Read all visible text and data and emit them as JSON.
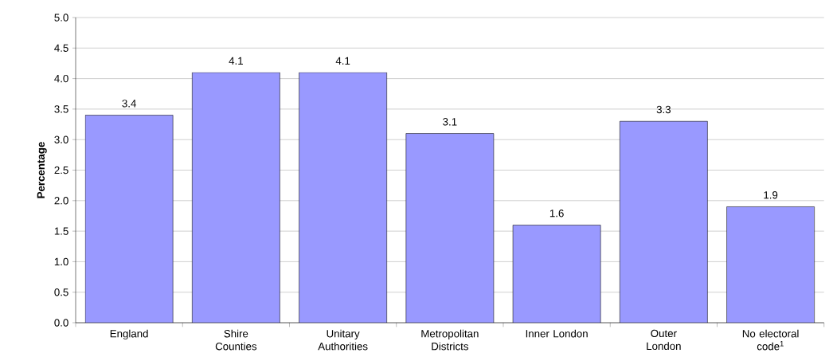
{
  "chart_data": {
    "type": "bar",
    "ylabel": "**Percentage**",
    "categories": [
      "England",
      "Shire Counties",
      "Unitary Authorities",
      "Metropolitan Districts",
      "Inner London",
      "Outer London",
      "No electoral code$^{1}$"
    ],
    "values": [
      3.4,
      4.1,
      4.1,
      3.1,
      1.6,
      3.3,
      1.9
    ],
    "color": "#9999ff",
    "data_labels": true,
    "grid": "y",
    "ylim": [
      0,
      5
    ],
    "yticks": [
      {
        "value": 0,
        "label": "0.0"
      },
      {
        "value": 0.5,
        "label": "0.5"
      },
      {
        "value": 1,
        "label": "1.0"
      },
      {
        "value": 1.5,
        "label": "1.5"
      },
      {
        "value": 2,
        "label": "2.0"
      },
      {
        "value": 2.5,
        "label": "2.5"
      },
      {
        "value": 3,
        "label": "3.0"
      },
      {
        "value": 3.5,
        "label": "3.5"
      },
      {
        "value": 4,
        "label": "4.0"
      },
      {
        "value": 4.5,
        "label": "4.5"
      },
      {
        "value": 5,
        "label": "5.0"
      }
    ]
  }
}
